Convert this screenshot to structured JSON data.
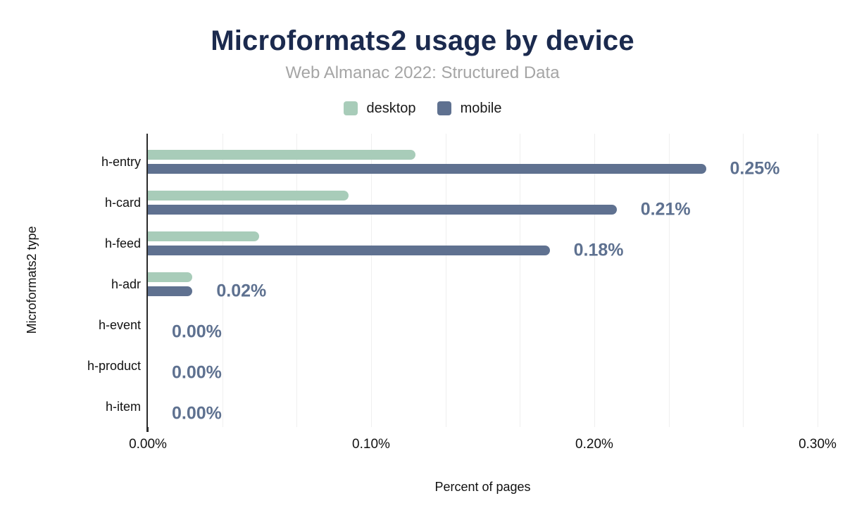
{
  "header": {
    "title": "Microformats2 usage by device",
    "subtitle": "Web Almanac 2022: Structured Data"
  },
  "chart_data": {
    "type": "bar",
    "orientation": "horizontal",
    "title": "Microformats2 usage by device",
    "subtitle": "Web Almanac 2022: Structured Data",
    "xlabel": "Percent of pages",
    "ylabel": "Microformats2 type",
    "categories": [
      "h-entry",
      "h-card",
      "h-feed",
      "h-adr",
      "h-event",
      "h-product",
      "h-item"
    ],
    "series": [
      {
        "name": "desktop",
        "color": "#a8ccb9",
        "values": [
          0.12,
          0.09,
          0.05,
          0.02,
          0,
          0,
          0
        ]
      },
      {
        "name": "mobile",
        "color": "#5f7190",
        "values": [
          0.25,
          0.21,
          0.18,
          0.02,
          0,
          0,
          0
        ]
      }
    ],
    "value_labels": [
      "0.25%",
      "0.21%",
      "0.18%",
      "0.02%",
      "0.00%",
      "0.00%",
      "0.00%"
    ],
    "value_label_color": "#5e7190",
    "xlim": [
      0,
      0.3
    ],
    "xticks": [
      {
        "value": 0.0,
        "label": "0.00%"
      },
      {
        "value": 0.1,
        "label": "0.10%"
      },
      {
        "value": 0.2,
        "label": "0.20%"
      },
      {
        "value": 0.3,
        "label": "0.30%"
      }
    ],
    "gridline_values": [
      0.0333,
      0.0667,
      0.1,
      0.1333,
      0.1667,
      0.2,
      0.2333,
      0.2667,
      0.3
    ],
    "grid": true,
    "legend_position": "top"
  }
}
